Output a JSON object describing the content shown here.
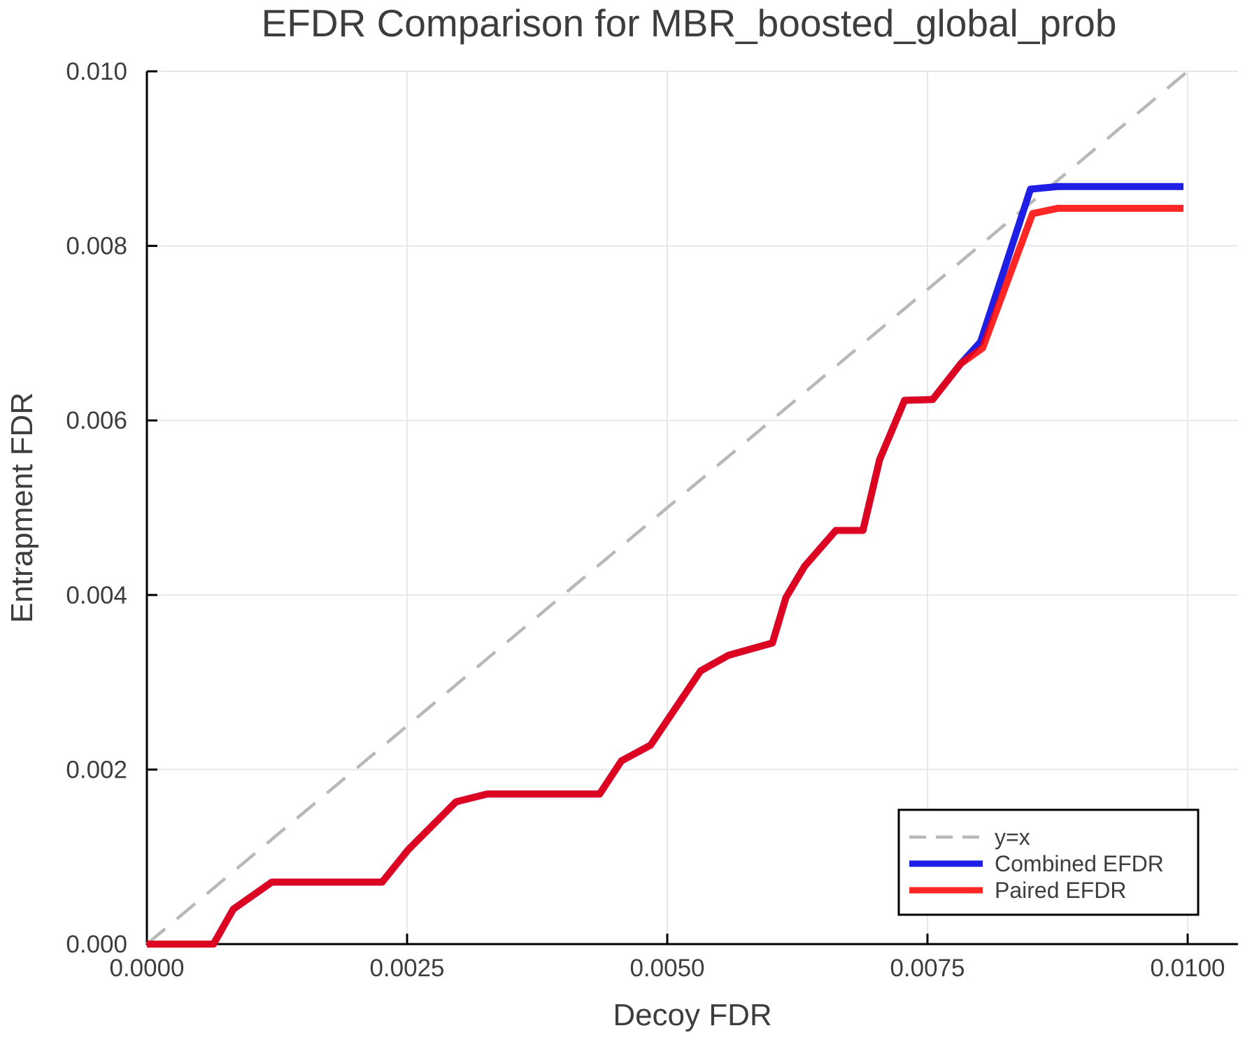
{
  "title": "EFDR Comparison for MBR_boosted_global_prob",
  "colors": {
    "background": "#ffffff",
    "grid": "#e8e8e8",
    "axis": "#000000",
    "text": "#3d3d3d",
    "diagonal": "#b8b8b8",
    "combined": "#1e1ee4",
    "paired": "#ff0000",
    "legend_border": "#000000",
    "legend_background": "#ffffff"
  },
  "chart_data": {
    "type": "line",
    "title": "EFDR Comparison for MBR_boosted_global_prob",
    "xlabel": "Decoy FDR",
    "ylabel": "Entrapment FDR",
    "xlim": [
      0.0,
      0.0105
    ],
    "ylim": [
      0.0,
      0.01
    ],
    "grid": true,
    "legend_position": "bottom-right",
    "x_ticks": [
      0.0,
      0.0025,
      0.005,
      0.0075,
      0.01
    ],
    "x_tick_labels": [
      "0.0000",
      "0.0025",
      "0.0050",
      "0.0075",
      "0.0100"
    ],
    "y_ticks": [
      0.0,
      0.002,
      0.004,
      0.006,
      0.008,
      0.01
    ],
    "y_tick_labels": [
      "0.000",
      "0.002",
      "0.004",
      "0.006",
      "0.008",
      "0.010"
    ],
    "series": [
      {
        "name": "y=x",
        "style": "dashed",
        "color": "#b8b8b8",
        "width": 4.5,
        "opacity": 1,
        "x": [
          0.0,
          0.01
        ],
        "y": [
          0.0,
          0.01
        ]
      },
      {
        "name": "Combined EFDR",
        "style": "solid",
        "color": "#1e1ee4",
        "width": 10,
        "opacity": 1,
        "x": [
          0.0,
          0.00064,
          0.00083,
          0.0012,
          0.00226,
          0.00251,
          0.00297,
          0.00327,
          0.00435,
          0.00456,
          0.00484,
          0.00532,
          0.00559,
          0.00601,
          0.00614,
          0.00632,
          0.00662,
          0.00688,
          0.00704,
          0.00728,
          0.00755,
          0.00782,
          0.00801,
          0.00849,
          0.00875,
          0.00996
        ],
        "y": [
          0.0,
          0.0,
          0.0004,
          0.00071,
          0.00071,
          0.00108,
          0.00163,
          0.00172,
          0.00172,
          0.0021,
          0.00228,
          0.00313,
          0.00331,
          0.00345,
          0.00397,
          0.00433,
          0.00474,
          0.00474,
          0.00555,
          0.00623,
          0.00624,
          0.00665,
          0.0069,
          0.00865,
          0.00868,
          0.00868
        ]
      },
      {
        "name": "Paired EFDR",
        "style": "solid",
        "color": "#ff0000",
        "width": 10,
        "opacity": 0.85,
        "x": [
          0.0,
          0.00064,
          0.00083,
          0.0012,
          0.00226,
          0.00251,
          0.00297,
          0.00327,
          0.00435,
          0.00456,
          0.00484,
          0.00532,
          0.00559,
          0.00601,
          0.00614,
          0.00632,
          0.00662,
          0.00688,
          0.00704,
          0.00728,
          0.00755,
          0.00782,
          0.00803,
          0.00851,
          0.00875,
          0.00996
        ],
        "y": [
          0.0,
          0.0,
          0.0004,
          0.00071,
          0.00071,
          0.00108,
          0.00163,
          0.00172,
          0.00172,
          0.0021,
          0.00228,
          0.00313,
          0.00331,
          0.00345,
          0.00397,
          0.00433,
          0.00474,
          0.00474,
          0.00555,
          0.00623,
          0.00624,
          0.00665,
          0.00683,
          0.00837,
          0.00843,
          0.00843
        ]
      }
    ]
  },
  "legend": {
    "items": [
      {
        "label": "y=x"
      },
      {
        "label": "Combined EFDR"
      },
      {
        "label": "Paired EFDR"
      }
    ]
  }
}
